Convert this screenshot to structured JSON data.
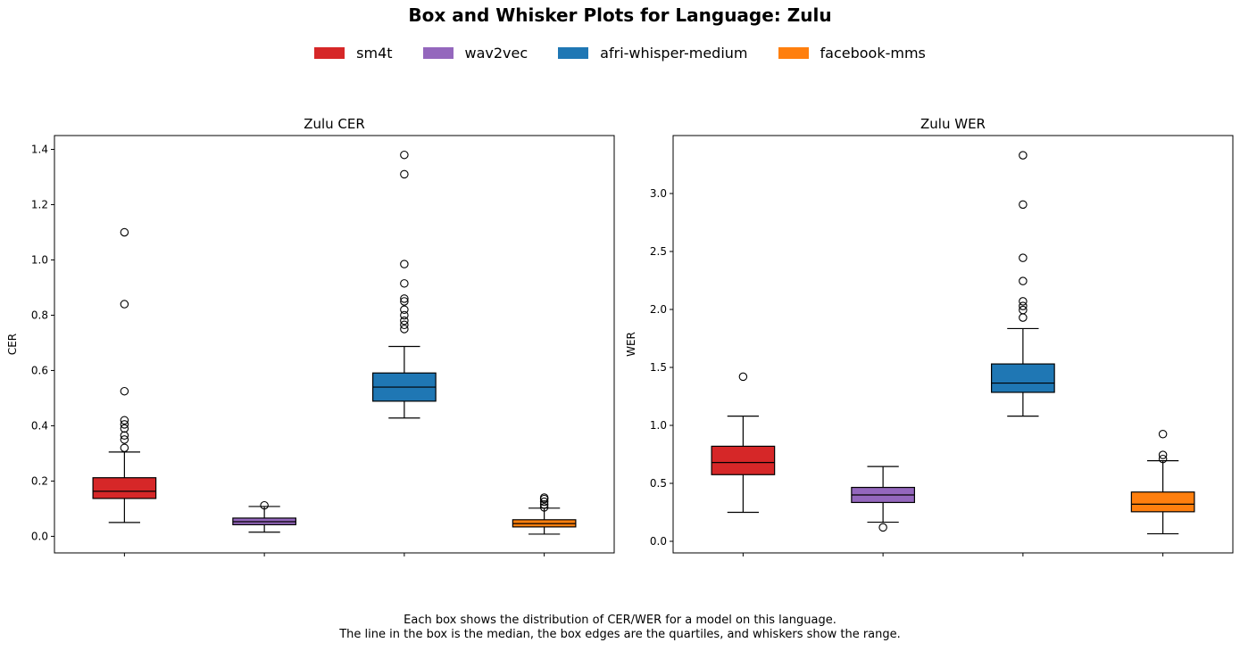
{
  "title": "Box and Whisker Plots for Language: Zulu",
  "legend": [
    {
      "label": "sm4t",
      "color": "#d62728"
    },
    {
      "label": "wav2vec",
      "color": "#9467bd"
    },
    {
      "label": "afri-whisper-medium",
      "color": "#1f77b4"
    },
    {
      "label": "facebook-mms",
      "color": "#ff7f0e"
    }
  ],
  "caption": {
    "line1": "Each box shows the distribution of CER/WER for a model on this language.",
    "line2": "The line in the box is the median, the box edges are the quartiles, and whiskers show the range."
  },
  "chart_data": [
    {
      "type": "box",
      "title": "Zulu CER",
      "ylabel": "CER",
      "xlabel": "",
      "ylim": [
        -0.06,
        1.45
      ],
      "yticks": [
        0.0,
        0.2,
        0.4,
        0.6,
        0.8,
        1.0,
        1.2,
        1.4
      ],
      "ytick_labels": [
        "0.0",
        "0.2",
        "0.4",
        "0.6",
        "0.8",
        "1.0",
        "1.2",
        "1.4"
      ],
      "series": [
        {
          "name": "sm4t",
          "color": "#d62728",
          "whislo": 0.05,
          "q1": 0.137,
          "median": 0.163,
          "q3": 0.212,
          "whishi": 0.305,
          "fliers": [
            0.32,
            0.35,
            0.365,
            0.39,
            0.405,
            0.42,
            0.525,
            0.84,
            1.1
          ]
        },
        {
          "name": "wav2vec",
          "color": "#9467bd",
          "whislo": 0.015,
          "q1": 0.042,
          "median": 0.053,
          "q3": 0.066,
          "whishi": 0.108,
          "fliers": [
            0.112
          ]
        },
        {
          "name": "afri-whisper-medium",
          "color": "#1f77b4",
          "whislo": 0.428,
          "q1": 0.489,
          "median": 0.54,
          "q3": 0.591,
          "whishi": 0.687,
          "fliers": [
            0.75,
            0.765,
            0.78,
            0.8,
            0.82,
            0.85,
            0.86,
            0.915,
            0.985,
            1.31,
            1.38
          ]
        },
        {
          "name": "facebook-mms",
          "color": "#ff7f0e",
          "whislo": 0.008,
          "q1": 0.034,
          "median": 0.046,
          "q3": 0.06,
          "whishi": 0.102,
          "fliers": [
            0.105,
            0.115,
            0.125,
            0.135,
            0.14
          ]
        }
      ]
    },
    {
      "type": "box",
      "title": "Zulu WER",
      "ylabel": "WER",
      "xlabel": "",
      "ylim": [
        -0.1,
        3.5
      ],
      "yticks": [
        0.0,
        0.5,
        1.0,
        1.5,
        2.0,
        2.5,
        3.0
      ],
      "ytick_labels": [
        "0.0",
        "0.5",
        "1.0",
        "1.5",
        "2.0",
        "2.5",
        "3.0"
      ],
      "series": [
        {
          "name": "sm4t",
          "color": "#d62728",
          "whislo": 0.25,
          "q1": 0.575,
          "median": 0.68,
          "q3": 0.82,
          "whishi": 1.08,
          "fliers": [
            1.42
          ]
        },
        {
          "name": "wav2vec",
          "color": "#9467bd",
          "whislo": 0.165,
          "q1": 0.335,
          "median": 0.4,
          "q3": 0.465,
          "whishi": 0.645,
          "fliers": [
            0.12
          ]
        },
        {
          "name": "afri-whisper-medium",
          "color": "#1f77b4",
          "whislo": 1.08,
          "q1": 1.285,
          "median": 1.365,
          "q3": 1.53,
          "whishi": 1.835,
          "fliers": [
            1.93,
            1.995,
            2.03,
            2.07,
            2.245,
            2.445,
            2.905,
            3.33
          ]
        },
        {
          "name": "facebook-mms",
          "color": "#ff7f0e",
          "whislo": 0.065,
          "q1": 0.255,
          "median": 0.32,
          "q3": 0.425,
          "whishi": 0.695,
          "fliers": [
            0.71,
            0.745,
            0.925
          ]
        }
      ]
    }
  ]
}
